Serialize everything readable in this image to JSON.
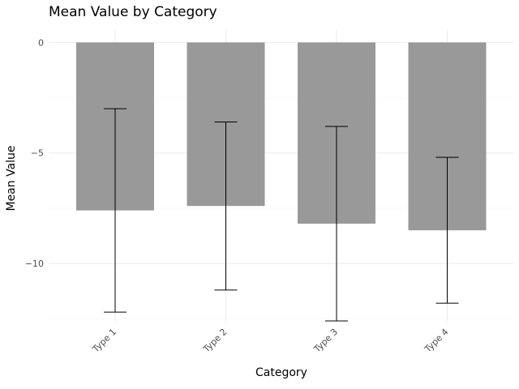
{
  "chart_data": {
    "type": "bar",
    "title": "Mean Value by Category",
    "xlabel": "Category",
    "ylabel": "Mean Value",
    "categories": [
      "Type 1",
      "Type 2",
      "Type 3",
      "Type 4"
    ],
    "values": [
      -7.6,
      -7.4,
      -8.2,
      -8.5
    ],
    "error_low": [
      -12.2,
      -11.2,
      -12.6,
      -11.8
    ],
    "error_high": [
      -3.0,
      -3.6,
      -3.8,
      -5.2
    ],
    "ylim": [
      -12.6,
      0.6
    ],
    "yticks": [
      0,
      -5,
      -10
    ],
    "ytick_labels": [
      "0",
      "−5",
      "−10"
    ],
    "bar_color": "#999999",
    "grid": true,
    "legend": "none"
  }
}
